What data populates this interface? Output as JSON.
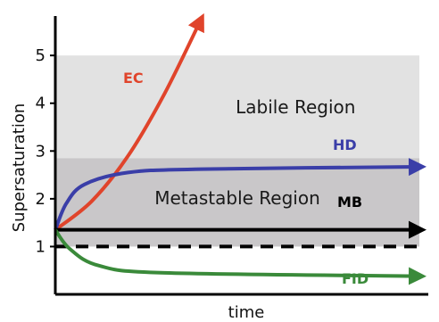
{
  "chart_data": {
    "type": "line",
    "title": "",
    "xlabel": "time",
    "ylabel": "Supersaturation",
    "ylim": [
      0,
      5.75
    ],
    "xlim": [
      0,
      10
    ],
    "grid": false,
    "y_ticks": [
      "1",
      "2",
      "3",
      "4",
      "5"
    ],
    "y_tick_values": [
      1,
      2,
      3,
      4,
      5
    ],
    "regions": [
      {
        "label": "Labile Region",
        "y_from": 2.85,
        "y_to": 5.0,
        "color": "#e2e2e2"
      },
      {
        "label": "Metastable Region",
        "y_from": 1.0,
        "y_to": 2.85,
        "color": "#c9c7c9"
      }
    ],
    "reference_line": {
      "y": 1.0,
      "style": "dashed",
      "color": "#000000"
    },
    "series": [
      {
        "name": "EC",
        "color": "#e0442b",
        "points": [
          [
            0,
            1.35
          ],
          [
            1,
            1.95
          ],
          [
            2,
            2.9
          ],
          [
            3,
            4.2
          ],
          [
            4,
            5.75
          ]
        ]
      },
      {
        "name": "HD",
        "color": "#3a3ea8",
        "points": [
          [
            0,
            1.35
          ],
          [
            0.3,
            1.9
          ],
          [
            0.8,
            2.3
          ],
          [
            2,
            2.55
          ],
          [
            4,
            2.62
          ],
          [
            10,
            2.67
          ]
        ]
      },
      {
        "name": "MB",
        "color": "#000000",
        "points": [
          [
            0,
            1.35
          ],
          [
            10,
            1.35
          ]
        ]
      },
      {
        "name": "FID",
        "color": "#3a8a3a",
        "points": [
          [
            0,
            1.35
          ],
          [
            0.4,
            0.95
          ],
          [
            1.2,
            0.6
          ],
          [
            3,
            0.45
          ],
          [
            10,
            0.38
          ]
        ]
      }
    ]
  }
}
